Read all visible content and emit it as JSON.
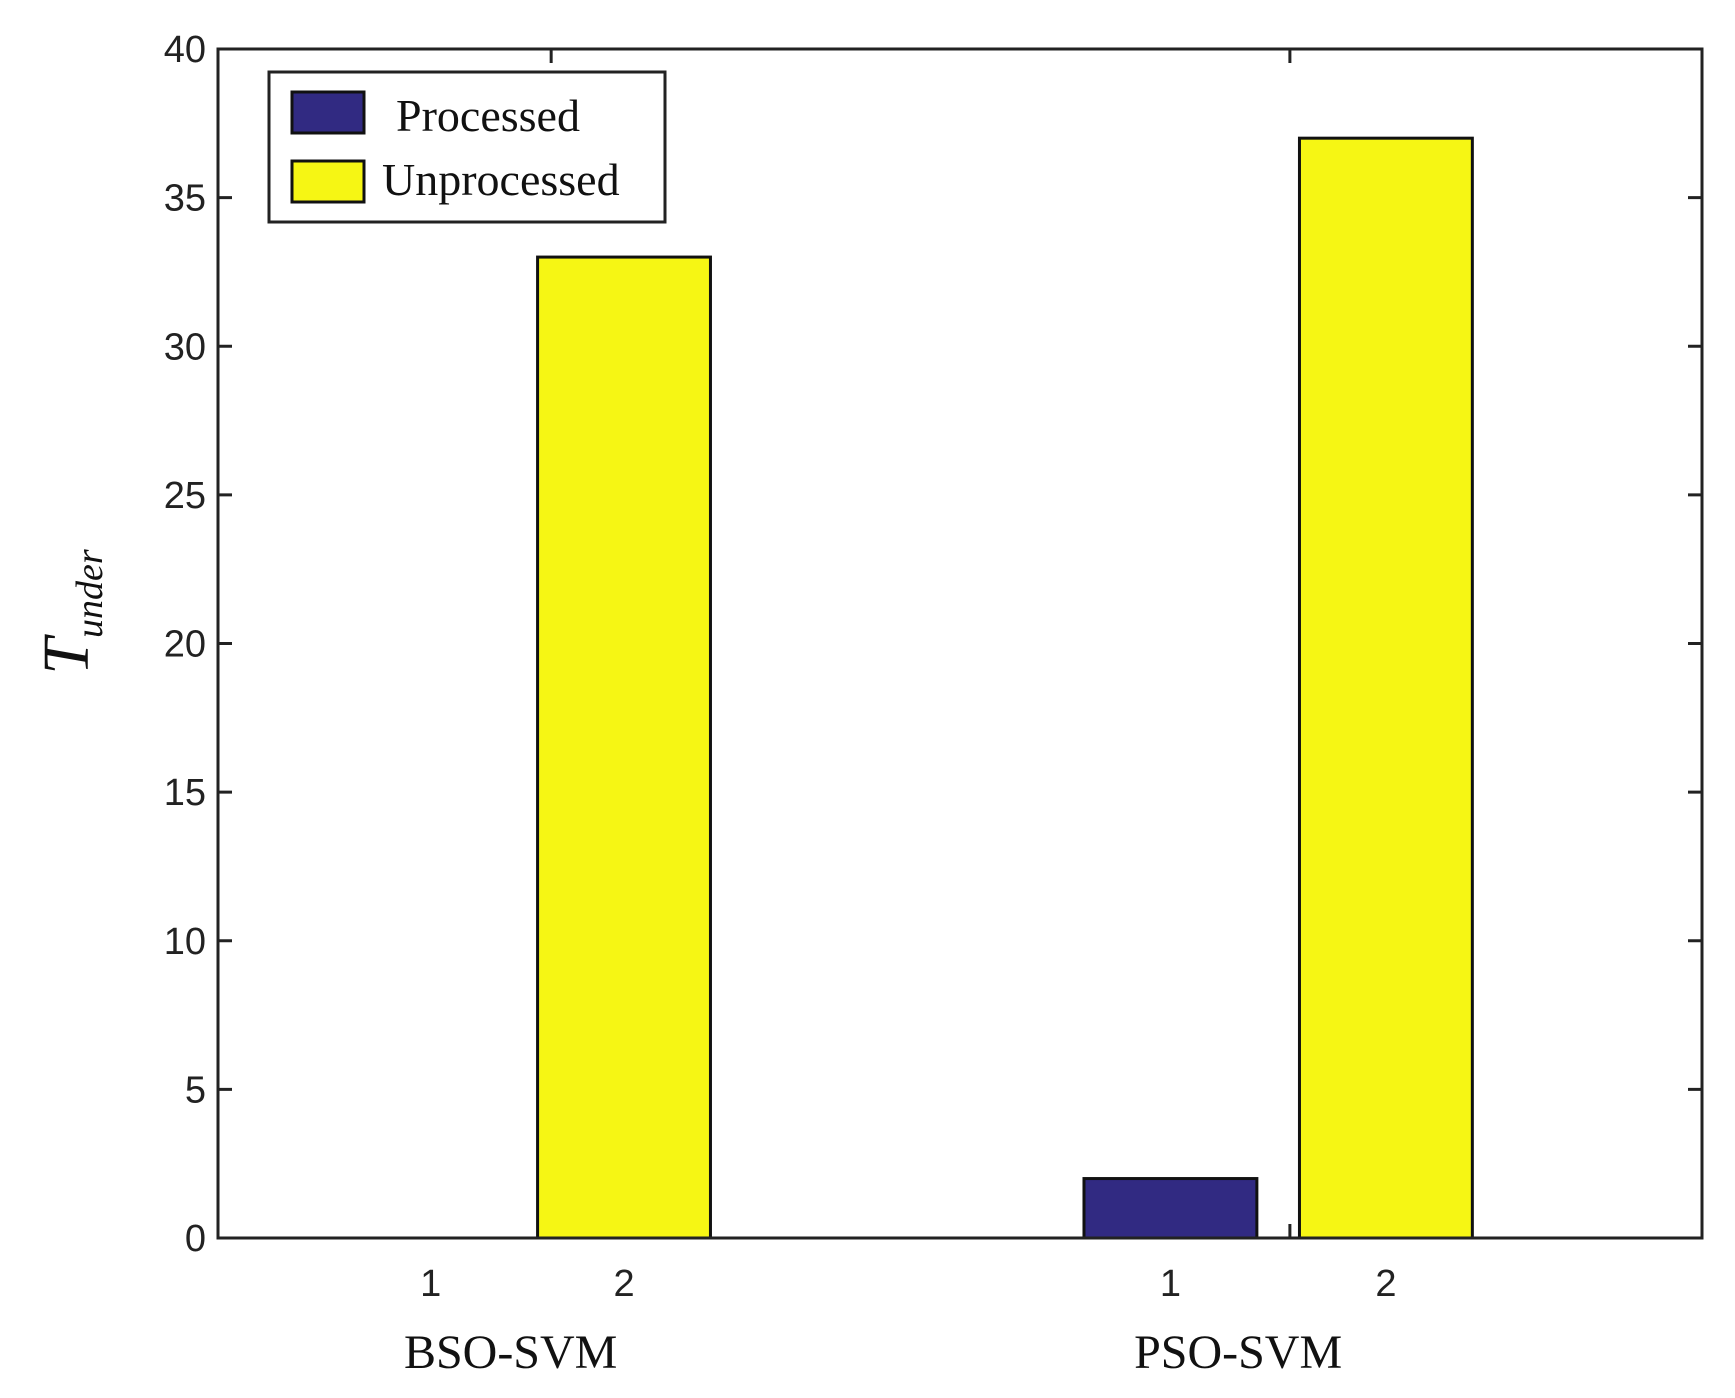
{
  "chart_data": {
    "type": "bar",
    "ylabel_main": "T",
    "ylabel_sub": "under",
    "ylim": [
      0,
      40
    ],
    "yticks": [
      0,
      5,
      10,
      15,
      20,
      25,
      30,
      35,
      40
    ],
    "groups": [
      {
        "name": "BSO-SVM",
        "tick_labels": [
          "1",
          "2"
        ]
      },
      {
        "name": "PSO-SVM",
        "tick_labels": [
          "1",
          "2"
        ]
      }
    ],
    "series": [
      {
        "name": "Processed",
        "color": "#312a82",
        "values": [
          0,
          2
        ]
      },
      {
        "name": "Unprocessed",
        "color": "#f6f614",
        "values": [
          33,
          37
        ]
      }
    ],
    "legend_position": "top-left"
  }
}
